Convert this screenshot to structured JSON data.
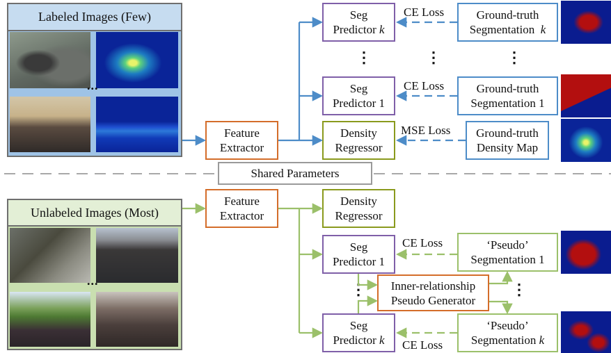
{
  "labeled": {
    "title": "Labeled Images (Few)"
  },
  "unlabeled": {
    "title": "Unlabeled Images (Most)"
  },
  "shared": "Shared Parameters",
  "feature_extractor": [
    "Feature",
    "Extractor"
  ],
  "seg_predictor": "Seg",
  "predictor_word": "Predictor",
  "k": "k",
  "one": "1",
  "density_regressor": [
    "Density",
    "Regressor"
  ],
  "gt_seg": [
    "Ground-truth",
    "Segmentation"
  ],
  "gt_density": [
    "Ground-truth",
    "Density Map"
  ],
  "pseudo_seg": [
    "‘Pseudo’",
    "Segmentation"
  ],
  "inner_gen": [
    "Inner-relationship",
    "Pseudo Generator"
  ],
  "losses": {
    "ce": "CE Loss",
    "mse": "MSE Loss"
  },
  "ellipsis": "⋮",
  "hdots": "...",
  "colors": {
    "blue_flow": "#4d8cc8",
    "green_flow": "#9bc06a",
    "panel_blue": "#9fc3e6",
    "panel_green": "#c9dfb0",
    "seg_mask_red": "#b30f0f",
    "mask_blue": "#0a1c8f"
  }
}
